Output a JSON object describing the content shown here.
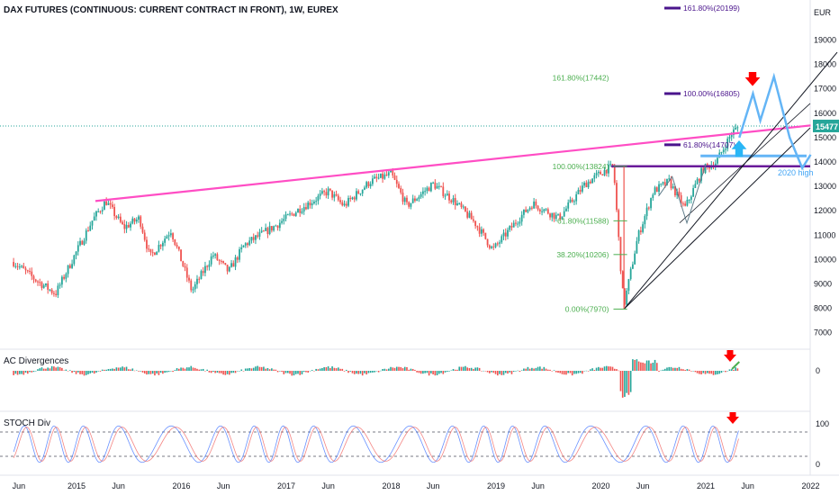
{
  "chart_data": {
    "type": "candlestick",
    "title": "DAX FUTURES (CONTINUOUS: CURRENT CONTRACT IN FRONT), 1W, EUREX",
    "currency": "EUR",
    "last_price": "15477",
    "price_axis": {
      "min": 6500,
      "max": 20500,
      "ticks": [
        7000,
        8000,
        9000,
        10000,
        11000,
        12000,
        13000,
        14000,
        15000,
        16000,
        17000,
        18000,
        19000
      ]
    },
    "time_axis": [
      "Jun",
      "2015",
      "Jun",
      "2016",
      "Jun",
      "2017",
      "Jun",
      "2018",
      "Jun",
      "2019",
      "Jun",
      "2020",
      "Jun",
      "2021",
      "Jun",
      "2022"
    ],
    "price_path": [
      [
        2014.4,
        9900
      ],
      [
        2014.6,
        9200
      ],
      [
        2014.8,
        8600
      ],
      [
        2014.95,
        9900
      ],
      [
        2015.15,
        11600
      ],
      [
        2015.28,
        12400
      ],
      [
        2015.45,
        11300
      ],
      [
        2015.6,
        11700
      ],
      [
        2015.7,
        10100
      ],
      [
        2015.9,
        11200
      ],
      [
        2016.1,
        8700
      ],
      [
        2016.3,
        10200
      ],
      [
        2016.45,
        9500
      ],
      [
        2016.6,
        10600
      ],
      [
        2016.9,
        11400
      ],
      [
        2017.1,
        12000
      ],
      [
        2017.4,
        12800
      ],
      [
        2017.55,
        12200
      ],
      [
        2017.8,
        13200
      ],
      [
        2018.0,
        13500
      ],
      [
        2018.15,
        12200
      ],
      [
        2018.4,
        13100
      ],
      [
        2018.6,
        12400
      ],
      [
        2018.8,
        11500
      ],
      [
        2018.97,
        10400
      ],
      [
        2019.2,
        11600
      ],
      [
        2019.35,
        12300
      ],
      [
        2019.6,
        11700
      ],
      [
        2019.85,
        13100
      ],
      [
        2020.05,
        13700
      ],
      [
        2020.12,
        13800
      ],
      [
        2020.2,
        9000
      ],
      [
        2020.22,
        8100
      ],
      [
        2020.35,
        10900
      ],
      [
        2020.5,
        12800
      ],
      [
        2020.65,
        13200
      ],
      [
        2020.8,
        12100
      ],
      [
        2020.97,
        13700
      ],
      [
        2021.1,
        14000
      ],
      [
        2021.25,
        15200
      ],
      [
        2021.32,
        15477
      ]
    ],
    "fibonacci_retracement": [
      {
        "label": "100.00%(13824)",
        "value": 13824
      },
      {
        "label": "61.80%(11588)",
        "value": 11588
      },
      {
        "label": "38.20%(10206)",
        "value": 10206
      },
      {
        "label": "0.00%(7970)",
        "value": 7970
      },
      {
        "label": "161.80%(17442)",
        "value": 17442
      }
    ],
    "fibonacci_extension": [
      {
        "label": "161.80%(20199)",
        "value": 20199
      },
      {
        "label": "100.00%(16805)",
        "value": 16805
      },
      {
        "label": "61.80%(14707)",
        "value": 14707
      }
    ],
    "annotations": {
      "level_label": "2020 high",
      "level_value": 14250,
      "resistance_level": 13824
    },
    "trendlines": [
      {
        "name": "pink",
        "from": [
          2015.18,
          12400
        ],
        "to": [
          2022.0,
          15500
        ]
      }
    ],
    "projection": [
      [
        2021.32,
        15000
      ],
      [
        2021.45,
        16800
      ],
      [
        2021.52,
        15700
      ],
      [
        2021.65,
        17500
      ],
      [
        2021.8,
        15000
      ],
      [
        2021.92,
        13750
      ],
      [
        2022.0,
        14300
      ]
    ],
    "panes": [
      {
        "name": "AC Divergences",
        "tick": "0"
      },
      {
        "name": "STOCH Div",
        "ticks": [
          "100",
          "0"
        ]
      }
    ],
    "colors": {
      "up": "#26a69a",
      "down": "#ef5350",
      "fib_green": "#4caf50",
      "fib_purple": "#4a148c",
      "pink": "#ff4dc4",
      "projection": "#64b5f6",
      "arrow": "#ff0000",
      "last_price_bg": "#26a69a"
    }
  }
}
